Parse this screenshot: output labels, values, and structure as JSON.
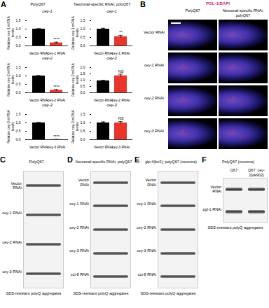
{
  "chart_data": [
    {
      "type": "bar",
      "title": "cey-1",
      "y_label": "Relative cey-1 mRNA levels",
      "categories": [
        "Vector RNAi",
        "cey-1 RNAi"
      ],
      "values": [
        1.0,
        0.18
      ],
      "errors": [
        0.03,
        0.04
      ],
      "colors": [
        "#000000",
        "#e8352b"
      ],
      "ylim": [
        0,
        1.5
      ],
      "yticks": [
        {
          "value": 0,
          "label": "0.0"
        },
        {
          "value": 0.5,
          "label": "0.5"
        },
        {
          "value": 1,
          "label": "1.0"
        },
        {
          "value": 1.5,
          "label": "1.5"
        }
      ],
      "annotations": [
        {
          "category": "cey-1 RNAi",
          "text": "****"
        }
      ]
    },
    {
      "type": "bar",
      "title": "cey-2",
      "y_label": "Relative cey-2 mRNA levels",
      "categories": [
        "Vector RNAi",
        "cey-2 RNAi"
      ],
      "values": [
        1.0,
        0.15
      ],
      "errors": [
        0.03,
        0.04
      ],
      "colors": [
        "#000000",
        "#e8352b"
      ],
      "ylim": [
        0,
        1.5
      ],
      "yticks": [
        {
          "value": 0,
          "label": "0.0"
        },
        {
          "value": 0.5,
          "label": "0.5"
        },
        {
          "value": 1,
          "label": "1.0"
        },
        {
          "value": 1.5,
          "label": "1.5"
        }
      ],
      "annotations": [
        {
          "category": "cey-2 RNAi",
          "text": "****"
        }
      ]
    },
    {
      "type": "bar",
      "title": "cey-3",
      "y_label": "Relative cey-3 mRNA levels",
      "categories": [
        "Vector RNAi",
        "cey-3 RNAi"
      ],
      "values": [
        1.0,
        0.01
      ],
      "errors": [
        0.03,
        0.005
      ],
      "colors": [
        "#000000",
        "#e8352b"
      ],
      "ylim": [
        0,
        1.5
      ],
      "yticks": [
        {
          "value": 0,
          "label": "0.0"
        },
        {
          "value": 0.5,
          "label": "0.5"
        },
        {
          "value": 1,
          "label": "1.0"
        },
        {
          "value": 1.5,
          "label": "1.5"
        }
      ],
      "annotations": [
        {
          "category": "cey-3 RNAi",
          "text": "****"
        }
      ]
    },
    {
      "type": "bar",
      "title": "cey-1",
      "y_label": "Relative cey-1 mRNA levels",
      "categories": [
        "Vector RNAi",
        "cey-1 RNAi"
      ],
      "values": [
        1.0,
        0.55
      ],
      "errors": [
        0.05,
        0.08
      ],
      "colors": [
        "#000000",
        "#e8352b"
      ],
      "ylim": [
        0,
        1.5
      ],
      "yticks": [
        {
          "value": 0,
          "label": "0.0"
        },
        {
          "value": 0.5,
          "label": "0.5"
        },
        {
          "value": 1,
          "label": "1.0"
        },
        {
          "value": 1.5,
          "label": "1.5"
        }
      ],
      "annotations": [
        {
          "category": "cey-1 RNAi",
          "text": "**"
        }
      ]
    },
    {
      "type": "bar",
      "title": "cey-2",
      "y_label": "Relative cey-2 mRNA levels",
      "categories": [
        "Vector RNAi",
        "cey-2 RNAi"
      ],
      "values": [
        0.95,
        1.35
      ],
      "errors": [
        0.04,
        0.12
      ],
      "colors": [
        "#000000",
        "#e8352b"
      ],
      "ylim": [
        0,
        2
      ],
      "yticks": [
        {
          "value": 0,
          "label": "0.0"
        },
        {
          "value": 0.5,
          "label": "0.5"
        },
        {
          "value": 1,
          "label": "1.0"
        },
        {
          "value": 1.5,
          "label": "1.5"
        },
        {
          "value": 2,
          "label": "2.0"
        }
      ],
      "annotations": [
        {
          "category": "cey-2 RNAi",
          "text": "NS"
        }
      ]
    },
    {
      "type": "bar",
      "title": "cey-3",
      "y_label": "Relative cey-3 mRNA levels",
      "categories": [
        "Vector RNAi",
        "cey-3 RNAi"
      ],
      "values": [
        1.0,
        1.0
      ],
      "errors": [
        0.06,
        0.08
      ],
      "colors": [
        "#000000",
        "#e8352b"
      ],
      "ylim": [
        0,
        1.5
      ],
      "yticks": [
        {
          "value": 0,
          "label": "0.0"
        },
        {
          "value": 0.5,
          "label": "0.5"
        },
        {
          "value": 1,
          "label": "1.0"
        },
        {
          "value": 1.5,
          "label": "1.5"
        }
      ],
      "annotations": [
        {
          "category": "cey-3 RNAi",
          "text": "NS"
        }
      ]
    }
  ],
  "panels": [
    {
      "label": "A",
      "columns": [
        "PolyQ67",
        "Neuronal-specific RNAi; polyQ67"
      ]
    },
    {
      "label": "B",
      "title": "PGL-1/DAPI",
      "columns": [
        "PolyQ67",
        "Neuronal-specific RNAi; polyQ67"
      ],
      "rows": [
        "Vector RNAi",
        "cey-1 RNAi",
        "cey-2 RNAi",
        "cey-3 RNAi"
      ]
    },
    {
      "label": "C",
      "title": "PolyQ67",
      "rows": [
        "Vector RNAi",
        "cey-1 RNAi",
        "cey-2 RNAi",
        "cey-3 RNAi"
      ],
      "caption": "SDS-resistant polyQ aggregates"
    },
    {
      "label": "D",
      "title": "Neuronal-specific RNAi; polyQ67",
      "rows": [
        "Vector RNAi",
        "cey-1 RNAi",
        "cey-2 RNAi",
        "cey-3 RNAi",
        "cct-8 RNAi"
      ],
      "caption": "SDS-resistant polyQ aggregates"
    },
    {
      "label": "E",
      "title": "glp-4(bn2); polyQ67 (neurons)",
      "rows": [
        "Vector RNAi",
        "cey-1 RNAi",
        "cey-2 RNAi",
        "cey-3 RNAi",
        "cct-8 RNAi"
      ],
      "caption": "SDS-resistant polyQ aggregates"
    },
    {
      "label": "F",
      "title": "PolyQ67 (neurons)",
      "columns": [
        "Q67",
        "Q67; cey-2(ok902)"
      ],
      "rows": [
        "Vector RNAi",
        "pgl-1 RNAi"
      ],
      "caption": "SDS-resistant polyQ aggregates"
    }
  ]
}
